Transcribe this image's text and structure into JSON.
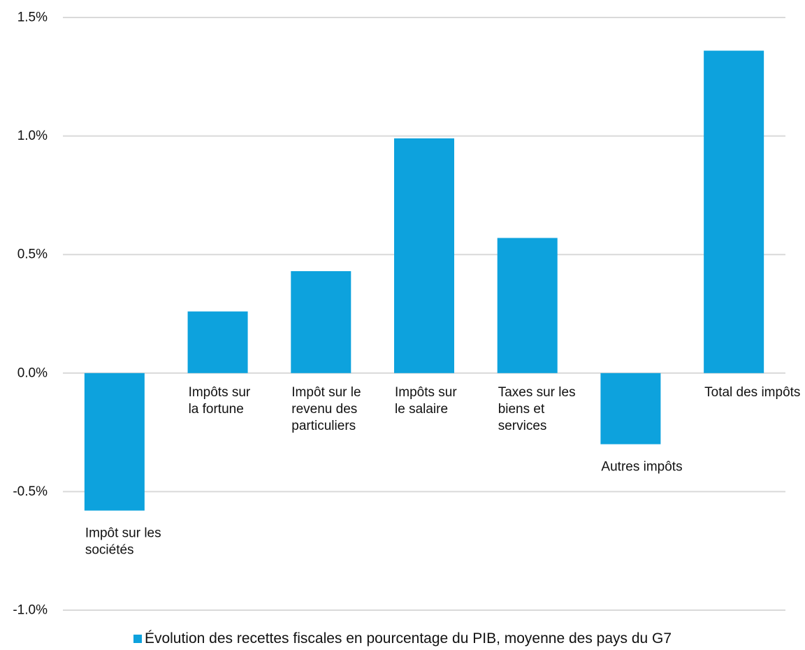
{
  "chart_data": {
    "type": "bar",
    "categories": [
      "Impôt sur les sociétés",
      "Impôts sur la fortune",
      "Impôt sur le revenu des particuliers",
      "Impôts sur le salaire",
      "Taxes sur les biens et services",
      "Autres impôts",
      "Total des impôts"
    ],
    "category_label_lines": [
      [
        "Impôt sur les",
        "sociétés"
      ],
      [
        "Impôts sur",
        "la fortune"
      ],
      [
        "Impôt sur le",
        "revenu des",
        "particuliers"
      ],
      [
        "Impôts sur",
        "le salaire"
      ],
      [
        "Taxes sur les",
        "biens et",
        "services"
      ],
      [
        "Autres impôts"
      ],
      [
        "Total des impôts"
      ]
    ],
    "series": [
      {
        "name": "Évolution des recettes fiscales en pourcentage du PIB, moyenne des pays du G7",
        "values": [
          -0.58,
          0.26,
          0.43,
          0.99,
          0.57,
          -0.3,
          1.36
        ],
        "color": "#0da2dd"
      }
    ],
    "ylim": [
      -1.0,
      1.5
    ],
    "yticks": [
      1.5,
      1.0,
      0.5,
      0.0,
      -0.5,
      -1.0
    ],
    "ytick_labels": [
      "1.5%",
      "1.0%",
      "0.5%",
      "0.0%",
      "-0.5%",
      "-1.0%"
    ],
    "grid": true,
    "gridline_color": "#d9d9d9",
    "legend_position": "bottom",
    "title": "",
    "xlabel": "",
    "ylabel": ""
  }
}
